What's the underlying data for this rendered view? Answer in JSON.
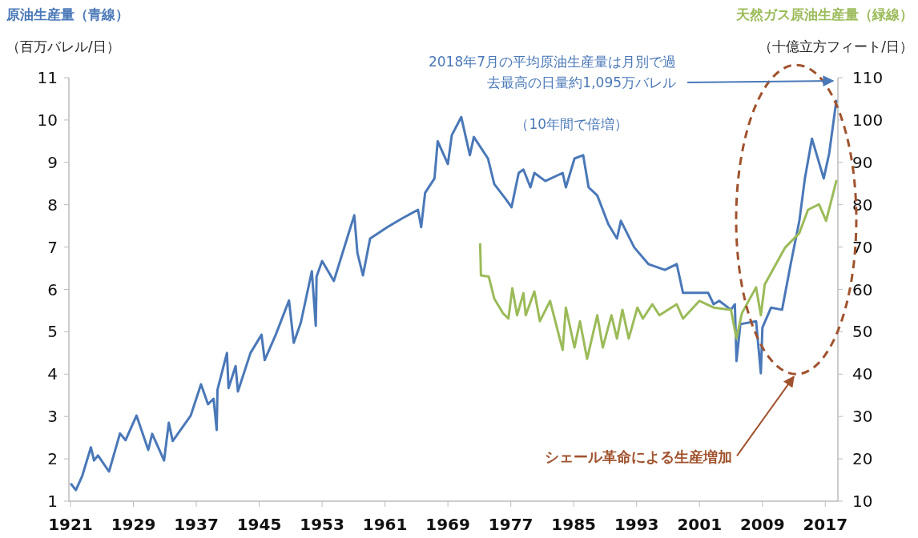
{
  "chart_data": {
    "type": "line",
    "ylabel": "（百万バレル/日）",
    "y2label": "（十億立方フィート/日）",
    "xlim": [
      1920.8,
      2018.6
    ],
    "xticks": [
      1921,
      1929,
      1937,
      1945,
      1953,
      1961,
      1969,
      1977,
      1985,
      1993,
      2001,
      2009,
      2017
    ],
    "ylim": [
      1,
      11
    ],
    "yticks": [
      1,
      2,
      3,
      4,
      5,
      6,
      7,
      8,
      9,
      10,
      11
    ],
    "y2lim": [
      10,
      110
    ],
    "y2ticks": [
      10,
      20,
      30,
      40,
      50,
      60,
      70,
      80,
      90,
      100,
      110
    ],
    "grid": false,
    "marker": "none",
    "line_style": "solid",
    "series": [
      {
        "name": "原油生産量（青線）",
        "color": "#4a78b8",
        "x": [
          1921.1,
          1921.7,
          1922.5,
          1923.6,
          1924.0,
          1924.5,
          1925.9,
          1927.3,
          1928.0,
          1929.4,
          1930.9,
          1931.4,
          1932.9,
          1933.5,
          1934.0,
          1936.3,
          1937.6,
          1938.5,
          1939.2,
          1939.6,
          1939.7,
          1940.9,
          1941.1,
          1942.0,
          1942.3,
          1943.9,
          1945.3,
          1945.7,
          1947.1,
          1948.8,
          1949.4,
          1950.3,
          1951.7,
          1952.2,
          1952.3,
          1953.0,
          1954.5,
          1956.3,
          1957.1,
          1957.5,
          1958.2,
          1959.1,
          1961.3,
          1963.1,
          1965.2,
          1965.6,
          1966.1,
          1967.3,
          1967.7,
          1969.0,
          1969.5,
          1970.7,
          1971.8,
          1972.3,
          1974.1,
          1974.9,
          1976.3,
          1977.1,
          1978.0,
          1978.6,
          1979.5,
          1980.0,
          1981.4,
          1983.6,
          1984.0,
          1985.1,
          1986.2,
          1986.9,
          1988.0,
          1989.4,
          1990.5,
          1991.0,
          1992.7,
          1994.5,
          1996.6,
          1998.1,
          1998.9,
          2000.3,
          2002.1,
          2002.8,
          2003.5,
          2005.0,
          2005.5,
          2005.7,
          2006.2,
          2008.2,
          2008.8,
          2009.0,
          2010.1,
          2011.5,
          2012.6,
          2013.7,
          2014.4,
          2015.3,
          2016.8,
          2017.5,
          2018.4
        ],
        "values": [
          1.4,
          1.26,
          1.6,
          2.27,
          1.96,
          2.08,
          1.7,
          2.6,
          2.44,
          3.02,
          2.21,
          2.59,
          1.96,
          2.85,
          2.42,
          3.02,
          3.76,
          3.29,
          3.42,
          2.68,
          3.63,
          4.5,
          3.67,
          4.19,
          3.59,
          4.5,
          4.93,
          4.33,
          4.93,
          5.74,
          4.74,
          5.22,
          6.43,
          5.14,
          6.3,
          6.67,
          6.2,
          7.28,
          7.75,
          6.86,
          6.33,
          7.2,
          7.47,
          7.67,
          7.88,
          7.47,
          8.28,
          8.62,
          9.5,
          8.96,
          9.64,
          10.07,
          9.17,
          9.6,
          9.09,
          8.49,
          8.15,
          7.94,
          8.75,
          8.83,
          8.41,
          8.75,
          8.56,
          8.75,
          8.41,
          9.09,
          9.17,
          8.41,
          8.22,
          7.54,
          7.2,
          7.62,
          6.99,
          6.6,
          6.46,
          6.6,
          5.92,
          5.92,
          5.92,
          5.65,
          5.73,
          5.52,
          5.65,
          4.31,
          5.18,
          5.25,
          4.02,
          5.1,
          5.57,
          5.52,
          6.6,
          7.62,
          8.62,
          9.56,
          8.62,
          9.22,
          10.45
        ]
      },
      {
        "name": "天然ガス原油生産量（緑線）",
        "color": "#9bbb59",
        "axis": "y2",
        "x": [
          1973.1,
          1973.2,
          1974.2,
          1974.9,
          1976.0,
          1976.7,
          1977.2,
          1977.8,
          1978.6,
          1978.9,
          1980.0,
          1980.7,
          1982.0,
          1983.6,
          1984.0,
          1985.1,
          1985.8,
          1986.7,
          1988.0,
          1988.7,
          1989.8,
          1990.5,
          1991.2,
          1992.0,
          1993.1,
          1993.8,
          1995.0,
          1995.9,
          1998.1,
          1998.9,
          2001.0,
          2002.8,
          2005.0,
          2005.7,
          2006.4,
          2008.2,
          2008.8,
          2009.3,
          2011.9,
          2013.7,
          2014.8,
          2016.2,
          2017.1,
          2018.4
        ],
        "values": [
          70.7,
          63.3,
          63.0,
          57.8,
          54.4,
          53.1,
          60.3,
          53.9,
          59.1,
          53.9,
          59.5,
          52.5,
          57.3,
          45.7,
          55.7,
          46.3,
          52.5,
          43.6,
          53.9,
          46.3,
          53.9,
          48.4,
          55.2,
          48.4,
          55.7,
          53.1,
          56.5,
          53.9,
          56.5,
          53.1,
          57.3,
          55.7,
          55.2,
          48.4,
          54.4,
          60.5,
          53.9,
          61.2,
          69.9,
          73.3,
          78.8,
          80.1,
          76.2,
          85.6
        ]
      }
    ],
    "annotations": [
      "2018年7月の平均原油生産量は月別で過去最高の日量約1,095万バレル",
      "（10年間で倍増）",
      "シェール革命による生産増加"
    ]
  }
}
